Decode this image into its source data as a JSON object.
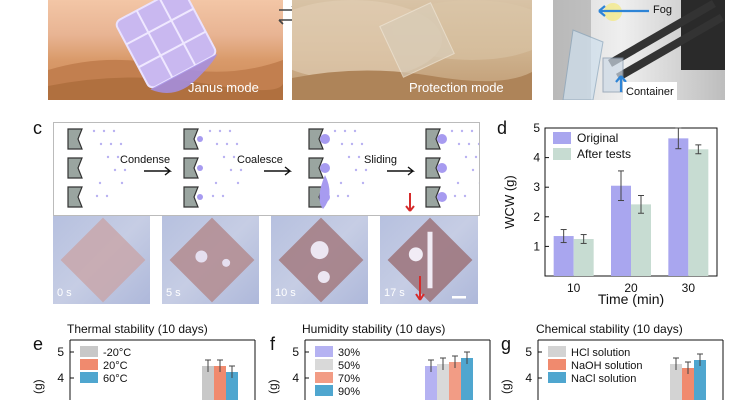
{
  "top_row": {
    "janus_label": "Janus mode",
    "protection_label": "Protection mode",
    "fog_label": "Fog",
    "container_label": "Container"
  },
  "panel_c": {
    "letter": "c",
    "steps": [
      "Condense",
      "Coalesce",
      "Sliding"
    ],
    "times": [
      "0 s",
      "5 s",
      "10 s",
      "17 s"
    ]
  },
  "chart_data": [
    {
      "type": "bar",
      "panel": "d",
      "title": "",
      "xlabel": "Time (min)",
      "ylabel": "WCW (g)",
      "categories": [
        "10",
        "20",
        "30"
      ],
      "ylim": [
        0,
        5
      ],
      "yticks": [
        1,
        2,
        3,
        4,
        5
      ],
      "legend_position": "top-left",
      "series": [
        {
          "name": "Original",
          "color": "#a9a6ef",
          "values": [
            1.35,
            3.05,
            4.65
          ],
          "errors": [
            0.22,
            0.5,
            0.35
          ]
        },
        {
          "name": "After tests",
          "color": "#c7dcd2",
          "values": [
            1.25,
            2.42,
            4.28
          ],
          "errors": [
            0.15,
            0.3,
            0.15
          ]
        }
      ]
    },
    {
      "type": "bar",
      "panel": "e",
      "title": "Thermal stability (10 days)",
      "ylabel": "(g)",
      "ytick_labels": [
        "4",
        "5"
      ],
      "series": [
        {
          "name": "-20°C",
          "color": "#c8c8c8"
        },
        {
          "name": "20°C",
          "color": "#f08a6e"
        },
        {
          "name": "60°C",
          "color": "#4fa6cf"
        }
      ]
    },
    {
      "type": "bar",
      "panel": "f",
      "title": "Humidity stability (10 days)",
      "ylabel": "(g)",
      "ytick_labels": [
        "4",
        "5"
      ],
      "series": [
        {
          "name": "30%",
          "color": "#b5b2f2"
        },
        {
          "name": "50%",
          "color": "#d9d9d9"
        },
        {
          "name": "70%",
          "color": "#f29c85"
        },
        {
          "name": "90%",
          "color": "#4fa6cf"
        }
      ]
    },
    {
      "type": "bar",
      "panel": "g",
      "title": "Chemical stability (10 days)",
      "ylabel": "(g)",
      "ytick_labels": [
        "4",
        "5"
      ],
      "series": [
        {
          "name": "HCl solution",
          "color": "#d3d3d3"
        },
        {
          "name": "NaOH solution",
          "color": "#f08a6e"
        },
        {
          "name": "NaCl solution",
          "color": "#4fa6cf"
        }
      ]
    }
  ]
}
